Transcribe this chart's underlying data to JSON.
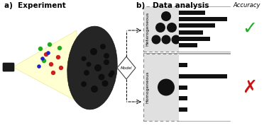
{
  "title_a": "a)  Experiment",
  "title_b": "b)   Data analysis",
  "accuracy_label": "Accuracy",
  "heterogeneous_label": "Heterogeneous",
  "homogeneous_label": "Homogeneous",
  "model_label": "Model",
  "bg_color": "#ffffff",
  "check_color": "#22aa22",
  "cross_color": "#cc1111",
  "het_bars": [
    0.55,
    1.0,
    0.75,
    0.5,
    0.65,
    0.38
  ],
  "hom_bars": [
    0.18,
    1.0,
    0.18,
    0.18,
    0.18
  ]
}
